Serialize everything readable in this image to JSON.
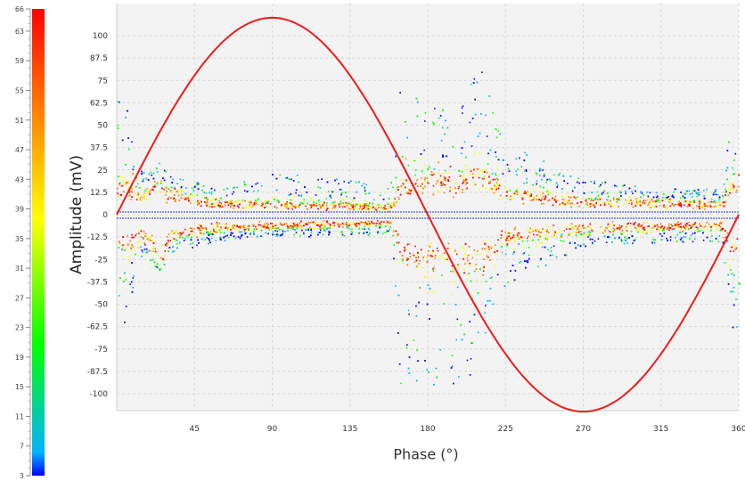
{
  "chart_data": {
    "type": "scatter",
    "xlabel": "Phase (°)",
    "ylabel": "Amplitude (mV)",
    "xlim": [
      0,
      360
    ],
    "ylim": [
      -110,
      110
    ],
    "x_ticks": [
      45,
      90,
      135,
      180,
      225,
      270,
      315,
      360
    ],
    "y_ticks": [
      100,
      87.5,
      75,
      62.5,
      50,
      37.5,
      25,
      12.5,
      0,
      -12.5,
      -25,
      -37.5,
      -50,
      -62.5,
      -75,
      -87.5,
      -100
    ],
    "grid": true,
    "reference_curve": {
      "shape": "sine",
      "color": "#ee1c1c",
      "amplitude": 110,
      "period": 360
    },
    "colorbar": {
      "min": 3,
      "max": 66,
      "labels": [
        66,
        63,
        59,
        55,
        51,
        47,
        43,
        39,
        35,
        31,
        27,
        23,
        19,
        15,
        11,
        7,
        3
      ],
      "colors": [
        "#0000ff",
        "#00b4ff",
        "#00ff00",
        "#ffff00",
        "#ff8000",
        "#ff0000"
      ]
    },
    "point_density_profile": {
      "phase": [
        0,
        5,
        15,
        25,
        30,
        45,
        60,
        90,
        135,
        158,
        165,
        180,
        200,
        210,
        225,
        270,
        315,
        350,
        355,
        360
      ],
      "positive_core_mV": [
        18,
        18,
        13,
        18,
        14,
        10,
        8,
        7,
        6,
        5,
        20,
        22,
        24,
        26,
        14,
        9,
        8,
        7,
        20,
        20
      ],
      "positive_max_mV": [
        65,
        62,
        25,
        30,
        25,
        20,
        15,
        25,
        20,
        15,
        85,
        60,
        65,
        85,
        40,
        20,
        15,
        15,
        60,
        60
      ],
      "negative_core_mV": [
        -18,
        -18,
        -13,
        -30,
        -14,
        -10,
        -8,
        -7,
        -6,
        -5,
        -25,
        -28,
        -30,
        -30,
        -15,
        -9,
        -8,
        -7,
        -22,
        -22
      ],
      "negative_min_mV": [
        -65,
        -60,
        -20,
        -35,
        -22,
        -18,
        -15,
        -12,
        -12,
        -10,
        -110,
        -95,
        -100,
        -75,
        -40,
        -18,
        -15,
        -15,
        -65,
        -65
      ]
    }
  }
}
